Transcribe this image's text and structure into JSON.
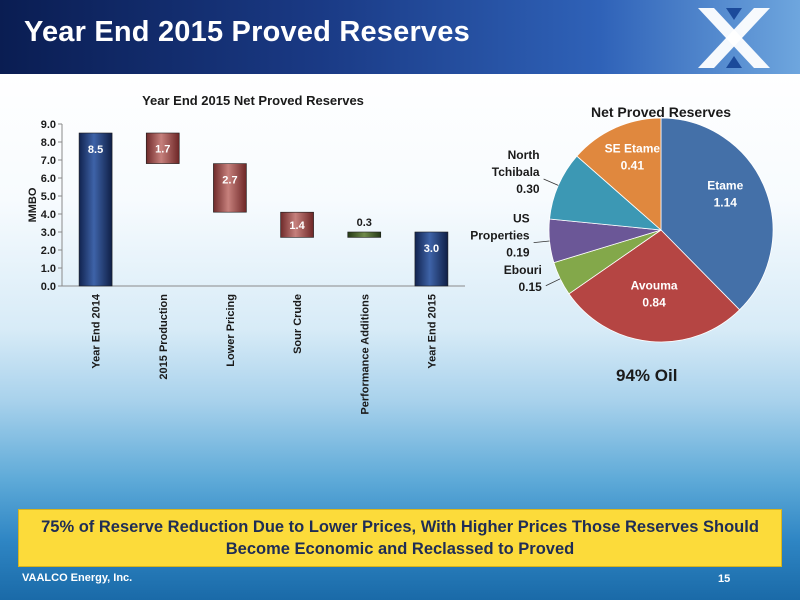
{
  "slide": {
    "title": "Year End 2015 Proved Reserves",
    "company": "VAALCO Energy, Inc.",
    "page_number": "15",
    "banner_text": "75% of Reserve Reduction Due to Lower Prices, With Higher Prices Those Reserves Should Become Economic and Reclassed to Proved",
    "oil_note": "94% Oil"
  },
  "colors": {
    "title_bar": "#13306d",
    "banner": "#fcdb3a",
    "bar_blue": "#1e3a78",
    "bar_red": "#a0504f",
    "bar_green": "#3f5a2a"
  },
  "icons": [
    "company-logo-icon"
  ],
  "chart_data": [
    {
      "type": "bar",
      "subtype": "waterfall",
      "title": "Year End 2015 Net Proved Reserves",
      "ylabel": "MMBO",
      "xlabel": "",
      "ylim": [
        0,
        9
      ],
      "yticks": [
        "0.0",
        "1.0",
        "2.0",
        "3.0",
        "4.0",
        "5.0",
        "6.0",
        "7.0",
        "8.0",
        "9.0"
      ],
      "categories": [
        "Year End 2014",
        "2015 Production",
        "Lower Pricing",
        "Sour Crude",
        "Performance Additions",
        "Year End 2015"
      ],
      "bars": [
        {
          "label": "8.5",
          "start": 0,
          "end": 8.5,
          "kind": "total"
        },
        {
          "label": "1.7",
          "start": 6.8,
          "end": 8.5,
          "kind": "decrease"
        },
        {
          "label": "2.7",
          "start": 4.1,
          "end": 6.8,
          "kind": "decrease"
        },
        {
          "label": "1.4",
          "start": 2.7,
          "end": 4.1,
          "kind": "decrease"
        },
        {
          "label": "0.3",
          "start": 2.7,
          "end": 3.0,
          "kind": "increase"
        },
        {
          "label": "3.0",
          "start": 0,
          "end": 3.0,
          "kind": "total"
        }
      ],
      "grid": false,
      "legend": "none"
    },
    {
      "type": "pie",
      "title": "Net Proved Reserves",
      "slices": [
        {
          "name": "Etame",
          "value": 1.14,
          "label": "1.14",
          "color": "#4470a8"
        },
        {
          "name": "Avouma",
          "value": 0.84,
          "label": "0.84",
          "color": "#b54543"
        },
        {
          "name": "Ebouri",
          "value": 0.15,
          "label": "0.15",
          "color": "#83a84a"
        },
        {
          "name": "US Properties",
          "value": 0.19,
          "label": "0.19",
          "color": "#6b5797"
        },
        {
          "name": "North Tchibala",
          "value": 0.3,
          "label": "0.30",
          "color": "#3c98b4"
        },
        {
          "name": "SE Etame",
          "value": 0.41,
          "label": "0.41",
          "color": "#e0883e"
        }
      ],
      "legend": "none"
    }
  ]
}
